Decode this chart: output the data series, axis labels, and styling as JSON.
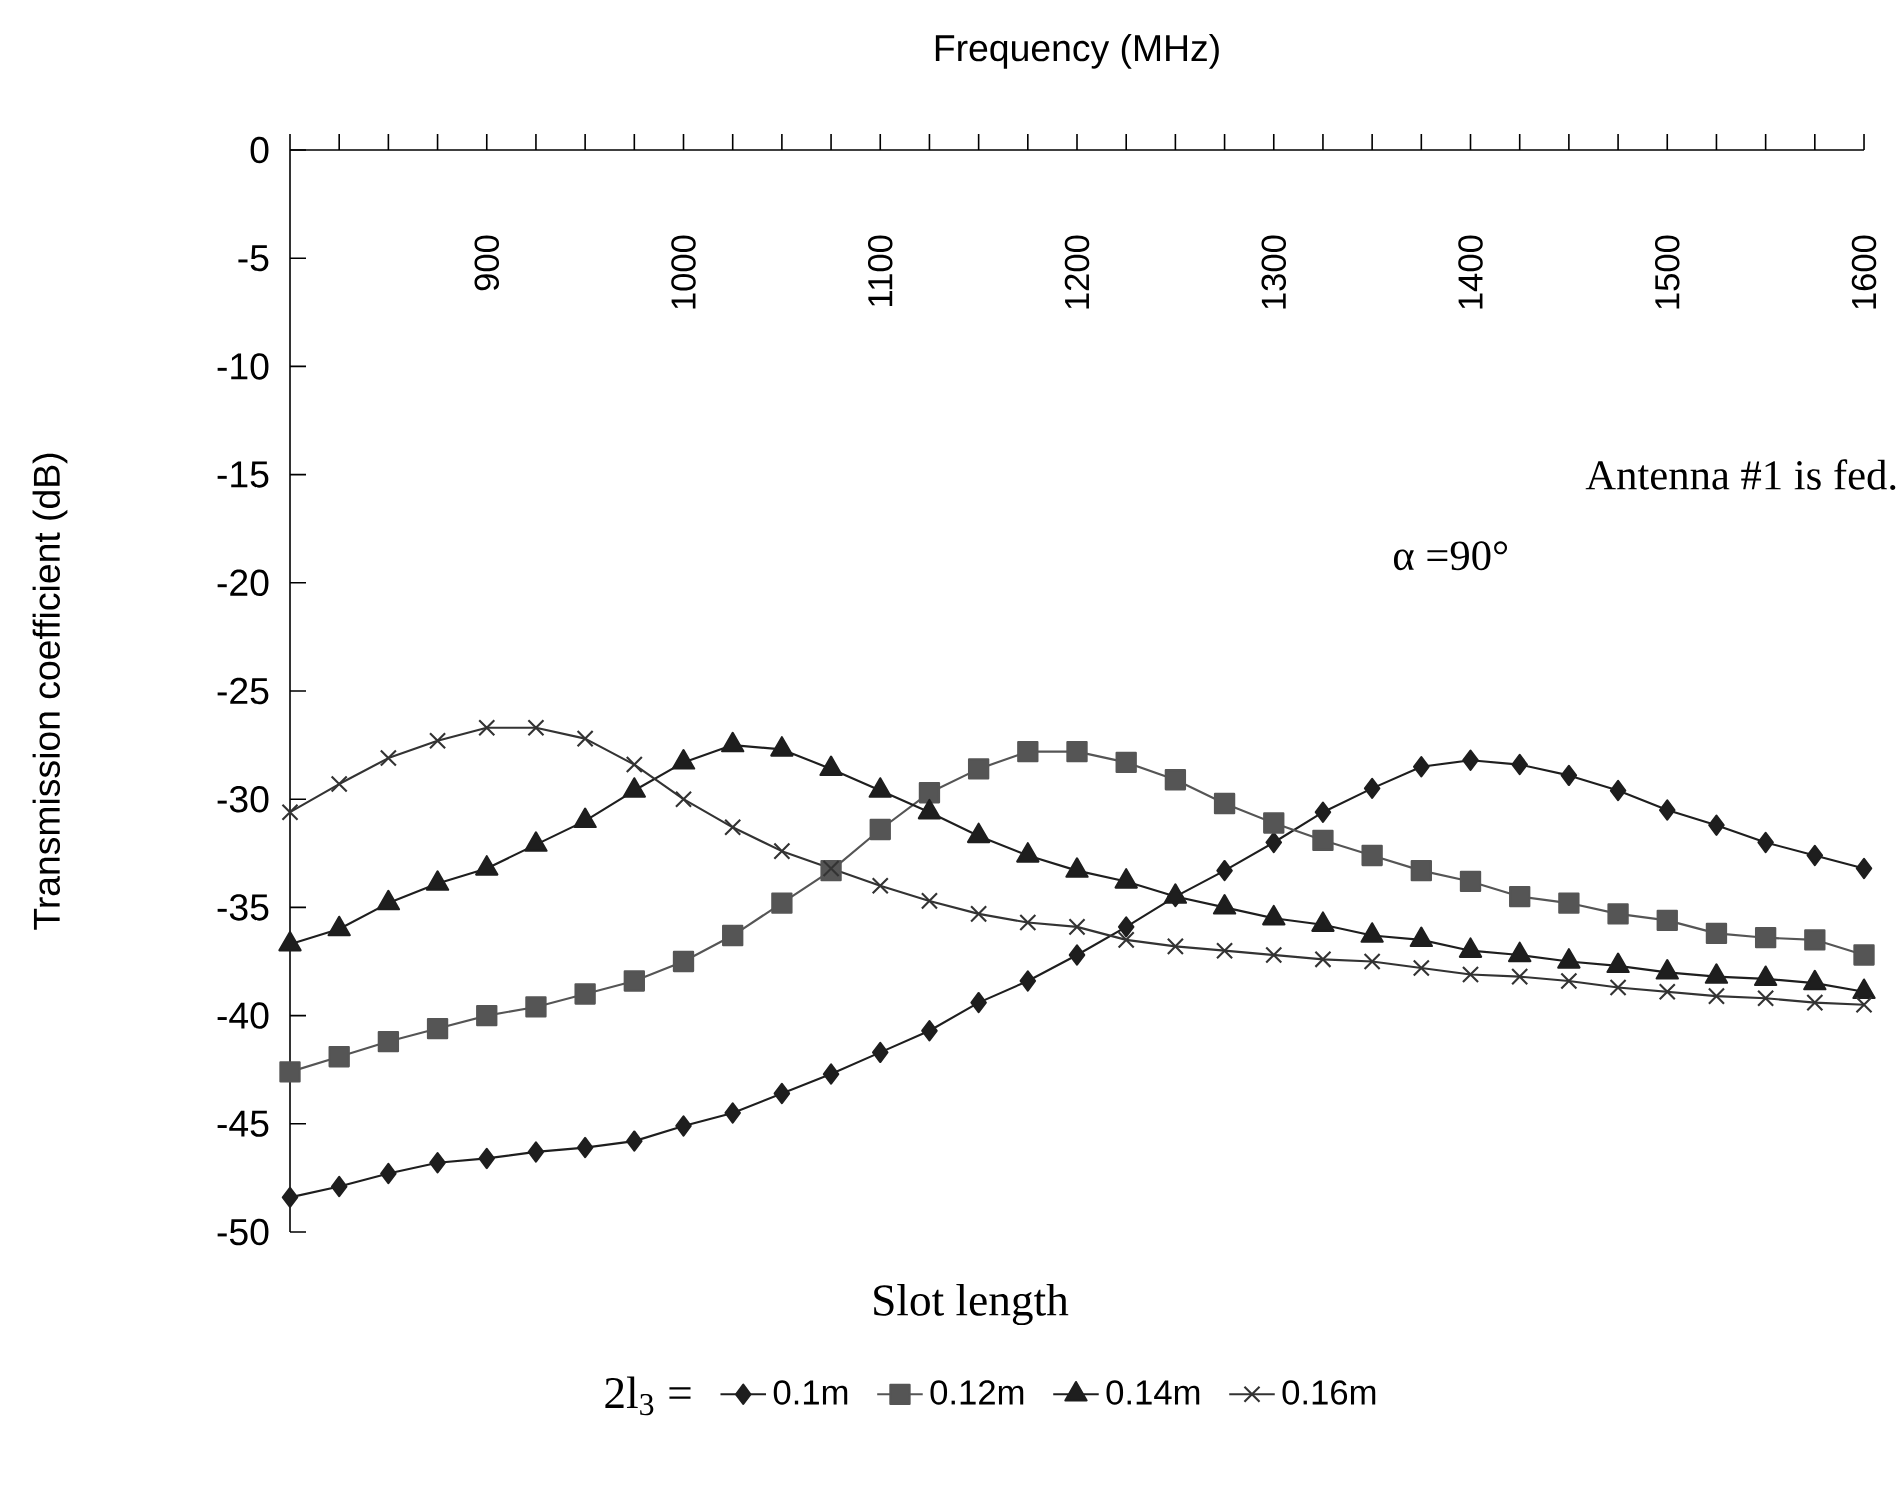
{
  "chart_data": {
    "type": "line",
    "xlabel": "Frequency (MHz)",
    "ylabel": "Transmission coefficient (dB)",
    "legend_title": "2l$_{3}$ =",
    "annotations": [
      "Antenna #1 is fed.",
      "α =90°",
      "Slot length"
    ],
    "x": [
      800,
      825,
      850,
      875,
      900,
      925,
      950,
      975,
      1000,
      1025,
      1050,
      1075,
      1100,
      1125,
      1150,
      1175,
      1200,
      1225,
      1250,
      1275,
      1300,
      1325,
      1350,
      1375,
      1400,
      1425,
      1450,
      1475,
      1500,
      1525,
      1550,
      1575,
      1600
    ],
    "xlim": [
      800,
      1600
    ],
    "xticks": [
      {
        "value": 800,
        "label": null
      },
      {
        "value": 825,
        "label": null
      },
      {
        "value": 850,
        "label": null
      },
      {
        "value": 875,
        "label": null
      },
      900,
      {
        "value": 925,
        "label": null
      },
      {
        "value": 950,
        "label": null
      },
      {
        "value": 975,
        "label": null
      },
      1000,
      {
        "value": 1025,
        "label": null
      },
      {
        "value": 1050,
        "label": null
      },
      {
        "value": 1075,
        "label": null
      },
      1100,
      {
        "value": 1125,
        "label": null
      },
      {
        "value": 1150,
        "label": null
      },
      {
        "value": 1175,
        "label": null
      },
      1200,
      {
        "value": 1225,
        "label": null
      },
      {
        "value": 1250,
        "label": null
      },
      {
        "value": 1275,
        "label": null
      },
      1300,
      {
        "value": 1325,
        "label": null
      },
      {
        "value": 1350,
        "label": null
      },
      {
        "value": 1375,
        "label": null
      },
      1400,
      {
        "value": 1425,
        "label": null
      },
      {
        "value": 1450,
        "label": null
      },
      {
        "value": 1475,
        "label": null
      },
      1500,
      {
        "value": 1525,
        "label": null
      },
      {
        "value": 1550,
        "label": null
      },
      {
        "value": 1575,
        "label": null
      },
      1600
    ],
    "ylim": [
      -50,
      0
    ],
    "yticks": [
      0,
      -5,
      -10,
      -15,
      -20,
      -25,
      -30,
      -35,
      -40,
      -45,
      -50
    ],
    "grid": false,
    "legend": "bottom",
    "line_style": "solid",
    "series": [
      {
        "name": "0.1m",
        "color": "#1e1e1e",
        "marker": "diamond",
        "values": [
          -48.4,
          -47.9,
          -47.3,
          -46.8,
          -46.6,
          -46.3,
          -46.1,
          -45.8,
          -45.1,
          -44.5,
          -43.6,
          -42.7,
          -41.7,
          -40.7,
          -39.4,
          -38.4,
          -37.2,
          -35.9,
          -34.5,
          -33.3,
          -32.0,
          -30.6,
          -29.5,
          -28.5,
          -28.2,
          -28.4,
          -28.9,
          -29.6,
          -30.5,
          -31.2,
          -32.0,
          -32.6,
          -33.2
        ]
      },
      {
        "name": "0.12m",
        "color": "#555555",
        "marker": "square",
        "values": [
          -42.6,
          -41.9,
          -41.2,
          -40.6,
          -40.0,
          -39.6,
          -39.0,
          -38.4,
          -37.5,
          -36.3,
          -34.8,
          -33.3,
          -31.4,
          -29.7,
          -28.6,
          -27.8,
          -27.8,
          -28.3,
          -29.1,
          -30.2,
          -31.1,
          -31.9,
          -32.6,
          -33.3,
          -33.8,
          -34.5,
          -34.8,
          -35.3,
          -35.6,
          -36.2,
          -36.4,
          -36.5,
          -37.2
        ]
      },
      {
        "name": "0.14m",
        "color": "#1e1e1e",
        "marker": "triangle",
        "values": [
          -36.7,
          -36.0,
          -34.8,
          -33.9,
          -33.2,
          -32.1,
          -31.0,
          -29.6,
          -28.3,
          -27.5,
          -27.7,
          -28.6,
          -29.6,
          -30.6,
          -31.7,
          -32.6,
          -33.3,
          -33.8,
          -34.5,
          -35.0,
          -35.5,
          -35.8,
          -36.3,
          -36.5,
          -37.0,
          -37.2,
          -37.5,
          -37.7,
          -38.0,
          -38.2,
          -38.3,
          -38.5,
          -38.9
        ]
      },
      {
        "name": "0.16m",
        "color": "#333333",
        "marker": "cross",
        "values": [
          -30.6,
          -29.3,
          -28.1,
          -27.3,
          -26.7,
          -26.7,
          -27.2,
          -28.4,
          -30.0,
          -31.3,
          -32.4,
          -33.2,
          -34.0,
          -34.7,
          -35.3,
          -35.7,
          -35.9,
          -36.5,
          -36.8,
          -37.0,
          -37.2,
          -37.4,
          -37.5,
          -37.8,
          -38.1,
          -38.2,
          -38.4,
          -38.7,
          -38.9,
          -39.1,
          -39.2,
          -39.4,
          -39.5
        ]
      }
    ]
  }
}
